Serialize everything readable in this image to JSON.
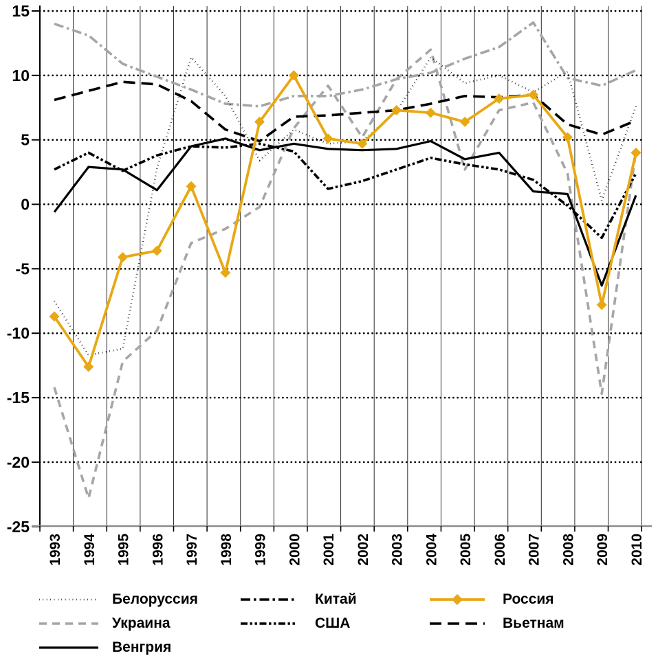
{
  "chart_data": {
    "type": "line",
    "title": "",
    "x_labels": [
      "1993",
      "1994",
      "1995",
      "1996",
      "1997",
      "1998",
      "1999",
      "2000",
      "2001",
      "2002",
      "2003",
      "2004",
      "2005",
      "2006",
      "2007",
      "2008",
      "2009",
      "2010"
    ],
    "ylim": [
      -25,
      15
    ],
    "ytick_step": 5,
    "ytick_labels": [
      "15",
      "10",
      "5",
      "0",
      "-5",
      "-10",
      "-15",
      "-20",
      "-25"
    ],
    "grid": {
      "vertical": "solid-black-thin",
      "horizontal": "dotted-black"
    },
    "legend_position": "bottom-3-columns",
    "axis_colors": {
      "y_axis": "#000000",
      "x_axis": "#8c8c8c",
      "ticks": "#000000"
    },
    "series": [
      {
        "id": "belarus",
        "name": "Белоруссия",
        "color": "#000000",
        "style": "dotted",
        "marker": "none",
        "values": [
          -7.5,
          -11.7,
          -11.2,
          2.8,
          11.4,
          8.4,
          3.4,
          5.8,
          4.7,
          4.9,
          7.2,
          11.4,
          9.4,
          10.0,
          8.7,
          10.3,
          0.3,
          7.6
        ]
      },
      {
        "id": "ukraine",
        "name": "Украина",
        "color": "#A6A6A6",
        "style": "dashed",
        "marker": "none",
        "values": [
          -14.2,
          -22.8,
          -12.2,
          -9.8,
          -3.0,
          -1.9,
          -0.2,
          5.9,
          9.2,
          5.2,
          9.7,
          12.0,
          2.7,
          7.3,
          7.9,
          2.4,
          -14.7,
          4.1
        ]
      },
      {
        "id": "hungary",
        "name": "Венгрия",
        "color": "#000000",
        "style": "solid",
        "marker": "none",
        "values": [
          -0.6,
          2.9,
          2.7,
          1.1,
          4.5,
          5.1,
          4.2,
          4.7,
          4.3,
          4.2,
          4.3,
          4.9,
          3.5,
          4.0,
          1.0,
          0.8,
          -6.3,
          0.7
        ]
      },
      {
        "id": "china",
        "name": "Китай",
        "color": "#A6A6A6",
        "legend_color": "#000000",
        "style": "dashdot",
        "marker": "none",
        "values": [
          14.0,
          13.1,
          10.9,
          9.9,
          8.9,
          7.8,
          7.6,
          8.4,
          8.4,
          8.9,
          9.7,
          10.2,
          11.3,
          12.2,
          14.1,
          9.8,
          9.2,
          10.4
        ]
      },
      {
        "id": "usa",
        "name": "США",
        "color": "#000000",
        "style": "dashdotdot",
        "marker": "none",
        "values": [
          2.7,
          4.0,
          2.6,
          3.8,
          4.5,
          4.4,
          4.7,
          4.1,
          1.2,
          1.8,
          2.7,
          3.6,
          3.1,
          2.7,
          1.9,
          -0.1,
          -2.6,
          2.4
        ]
      },
      {
        "id": "russia",
        "name": "Россия",
        "color": "#E8A814",
        "style": "solid",
        "marker": "diamond",
        "values": [
          -8.7,
          -12.6,
          -4.1,
          -3.6,
          1.4,
          -5.3,
          6.4,
          10.0,
          5.1,
          4.7,
          7.3,
          7.1,
          6.4,
          8.2,
          8.5,
          5.2,
          -7.8,
          4.0
        ]
      },
      {
        "id": "vietnam",
        "name": "Вьетнам",
        "color": "#000000",
        "style": "longdash",
        "marker": "none",
        "values": [
          8.1,
          8.8,
          9.5,
          9.3,
          8.0,
          5.8,
          4.9,
          6.8,
          6.9,
          7.1,
          7.3,
          7.8,
          8.4,
          8.3,
          8.5,
          6.2,
          5.4,
          6.5
        ]
      }
    ]
  }
}
